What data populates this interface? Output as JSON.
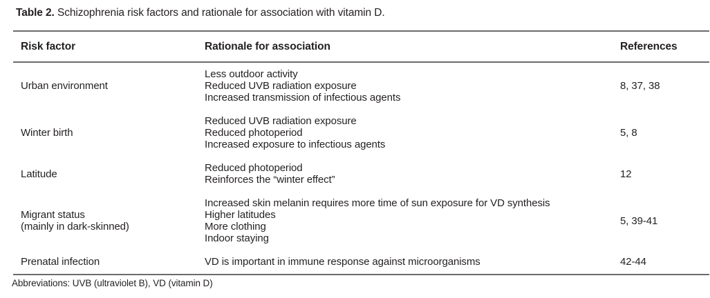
{
  "title": {
    "label": "Table 2.",
    "text": "Schizophrenia risk factors and rationale for association with vitamin D."
  },
  "table": {
    "headers": {
      "risk_factor": "Risk factor",
      "rationale": "Rationale for association",
      "references": "References"
    },
    "rows": [
      {
        "risk_factor": [
          "Urban environment"
        ],
        "rationale": [
          "Less outdoor activity",
          "Reduced UVB radiation exposure",
          "Increased transmission of infectious agents"
        ],
        "references": "8, 37, 38"
      },
      {
        "risk_factor": [
          "Winter birth"
        ],
        "rationale": [
          "Reduced UVB radiation exposure",
          "Reduced photoperiod",
          "Increased exposure to infectious agents"
        ],
        "references": "5, 8"
      },
      {
        "risk_factor": [
          "Latitude"
        ],
        "rationale": [
          "Reduced photoperiod",
          "Reinforces the “winter effect”"
        ],
        "references": "12"
      },
      {
        "risk_factor": [
          "Migrant status",
          "(mainly in dark-skinned)"
        ],
        "rationale": [
          "Increased skin melanin requires more time of sun exposure for VD synthesis",
          "Higher latitudes",
          "More clothing",
          "Indoor staying"
        ],
        "references": "5, 39-41"
      },
      {
        "risk_factor": [
          "Prenatal infection"
        ],
        "rationale": [
          "VD is important in immune response against microorganisms"
        ],
        "references": "42-44"
      }
    ]
  },
  "footnote": "Abbreviations: UVB (ultraviolet B), VD (vitamin D)",
  "colors": {
    "text": "#231f20",
    "rule": "#6a6b6d",
    "background": "#ffffff"
  }
}
